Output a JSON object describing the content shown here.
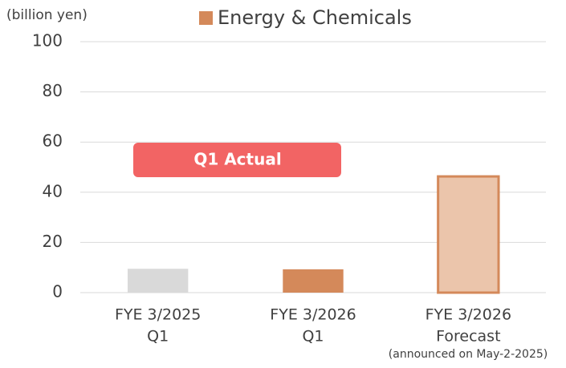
{
  "chart_data": {
    "type": "bar",
    "y_label": "(billion yen)",
    "categories": [
      [
        "FYE 3/2025",
        "Q1"
      ],
      [
        "FYE 3/2026",
        "Q1"
      ],
      [
        "FYE 3/2026",
        "Forecast"
      ]
    ],
    "series": [
      {
        "name": "Energy & Chemicals",
        "color": "#d4895a",
        "values": [
          9.5,
          9.3,
          46.3
        ]
      }
    ],
    "bar_colors": [
      "#d9d9d9",
      "#d4895a",
      "#ebc5ab"
    ],
    "bar_edge_colors": [
      null,
      null,
      "#d4895a"
    ],
    "ylim": [
      0,
      100
    ],
    "yticks": [
      0,
      20,
      40,
      60,
      80,
      100
    ],
    "grid": true,
    "legend": "top",
    "annotations": [
      {
        "text": "Q1 Actual",
        "color": "#f26464"
      },
      {
        "text": "(announced on May-2-2025)"
      }
    ]
  }
}
